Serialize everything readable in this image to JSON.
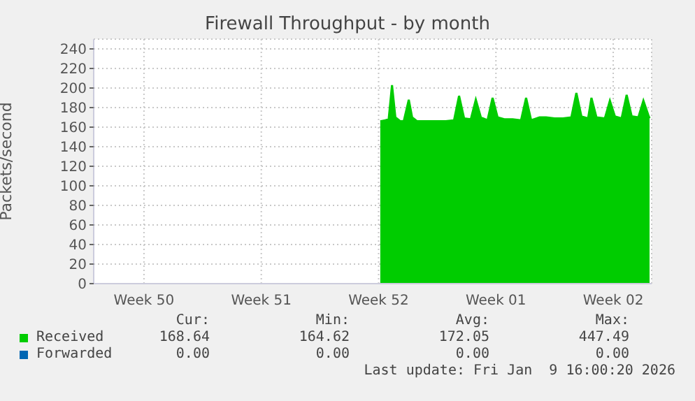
{
  "chart_data": {
    "type": "area",
    "title": "Firewall Throughput - by month",
    "ylabel": "Packets/second",
    "x": [
      "2025-12-24T14:24",
      "2025-12-24T21:36",
      "2025-12-25T02:24",
      "2025-12-25T07:12",
      "2025-12-25T12:00",
      "2025-12-25T19:12",
      "2025-12-26T00:00",
      "2025-12-26T07:12",
      "2025-12-26T12:00",
      "2025-12-26T19:12",
      "2025-12-27T12:00",
      "2025-12-28T00:00",
      "2025-12-28T12:00",
      "2025-12-29T00:00",
      "2025-12-29T07:12",
      "2025-12-29T14:24",
      "2025-12-30T00:00",
      "2025-12-30T07:12",
      "2025-12-30T14:24",
      "2025-12-31T00:00",
      "2025-12-31T07:12",
      "2025-12-31T14:24",
      "2026-01-01T00:00",
      "2026-01-01T12:00",
      "2026-01-02T00:00",
      "2026-01-02T07:12",
      "2026-01-02T14:24",
      "2026-01-03T02:24",
      "2026-01-03T12:00",
      "2026-01-04T00:00",
      "2026-01-04T12:00",
      "2026-01-05T00:00",
      "2026-01-05T07:12",
      "2026-01-05T14:24",
      "2026-01-06T00:00",
      "2026-01-06T04:48",
      "2026-01-06T12:00",
      "2026-01-07T00:00",
      "2026-01-07T07:12",
      "2026-01-07T14:24",
      "2026-01-08T00:00",
      "2026-01-08T07:12",
      "2026-01-08T14:24",
      "2026-01-09T00:00",
      "2026-01-09T07:12",
      "2026-01-09T14:24",
      "2026-01-09T16:00"
    ],
    "series": [
      {
        "name": "Received",
        "color": "#00cc00",
        "values": [
          166,
          167,
          168,
          203,
          170,
          166,
          166,
          188,
          170,
          166,
          166,
          166,
          166,
          167,
          192,
          169,
          168,
          188,
          170,
          167,
          190,
          170,
          168,
          168,
          167,
          190,
          167,
          170,
          170,
          169,
          169,
          170,
          195,
          171,
          169,
          190,
          170,
          169,
          187,
          171,
          169,
          193,
          171,
          170,
          187,
          172,
          169
        ]
      },
      {
        "name": "Forwarded",
        "color": "#0066b3",
        "values": [
          null,
          null,
          null,
          null,
          null,
          null,
          null,
          null,
          null,
          null,
          null,
          null,
          null,
          null,
          null,
          null,
          null,
          null,
          null,
          null,
          null,
          null,
          null,
          null,
          null,
          null,
          null,
          null,
          null,
          null,
          null,
          null,
          null,
          null,
          null,
          null,
          null,
          null,
          null,
          null,
          null,
          null,
          null,
          null,
          null,
          null,
          null
        ]
      }
    ],
    "xlim": [
      "2025-12-07T12:00",
      "2026-01-09T19:00"
    ],
    "xticks": [
      {
        "value": "2025-12-10T12:00",
        "label": "Week 50"
      },
      {
        "value": "2025-12-17T12:00",
        "label": "Week 51"
      },
      {
        "value": "2025-12-24T12:00",
        "label": "Week 52"
      },
      {
        "value": "2025-12-31T12:00",
        "label": "Week 01"
      },
      {
        "value": "2026-01-07T12:00",
        "label": "Week 02"
      }
    ],
    "ylim": [
      0,
      250
    ],
    "yticks": [
      0,
      20,
      40,
      60,
      80,
      100,
      120,
      140,
      160,
      180,
      200,
      220,
      240
    ],
    "grid": true,
    "legend": "bottom",
    "annotations": [
      "Cur:",
      "Min:",
      "Avg:",
      "Max:",
      "168.64",
      "164.62",
      "172.05",
      "447.49",
      "0.00",
      "0.00",
      "0.00",
      "0.00",
      "Last update: Fri Jan  9 16:00:20 2026"
    ]
  }
}
